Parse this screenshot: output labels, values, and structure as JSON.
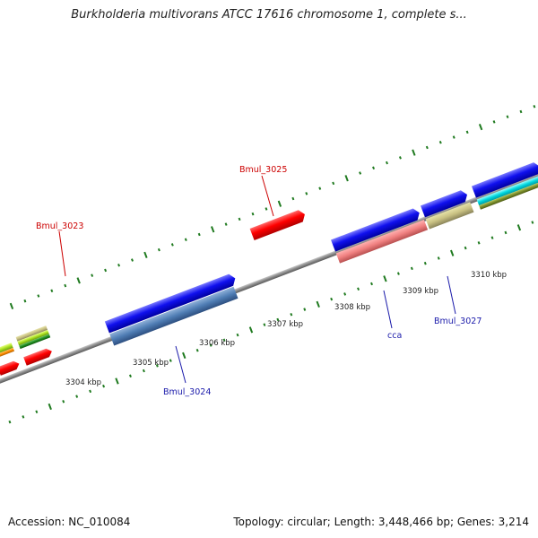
{
  "title": "Burkholderia multivorans ATCC 17616 chromosome 1, complete s...",
  "footer": {
    "accession": "Accession: NC_010084",
    "summary": "Topology: circular; Length: 3,448,466 bp; Genes: 3,214"
  },
  "colors": {
    "backbone": "#8a8a8a",
    "tick": "#1f7a1f",
    "gene_label_red": "#cc0000",
    "gene_label_blue": "#1a1aaa"
  },
  "scale_labels": [
    "3304 kbp",
    "3305 kbp",
    "3306 kbp",
    "3307 kbp",
    "3308 kbp",
    "3309 kbp",
    "3310 kbp"
  ],
  "gene_labels": [
    {
      "name": "Bmul_3023",
      "color": "red"
    },
    {
      "name": "Bmul_3025",
      "color": "red"
    },
    {
      "name": "Bmul_3024",
      "color": "blue"
    },
    {
      "name": "cca",
      "color": "blue"
    },
    {
      "name": "Bmul_3027",
      "color": "blue"
    }
  ]
}
